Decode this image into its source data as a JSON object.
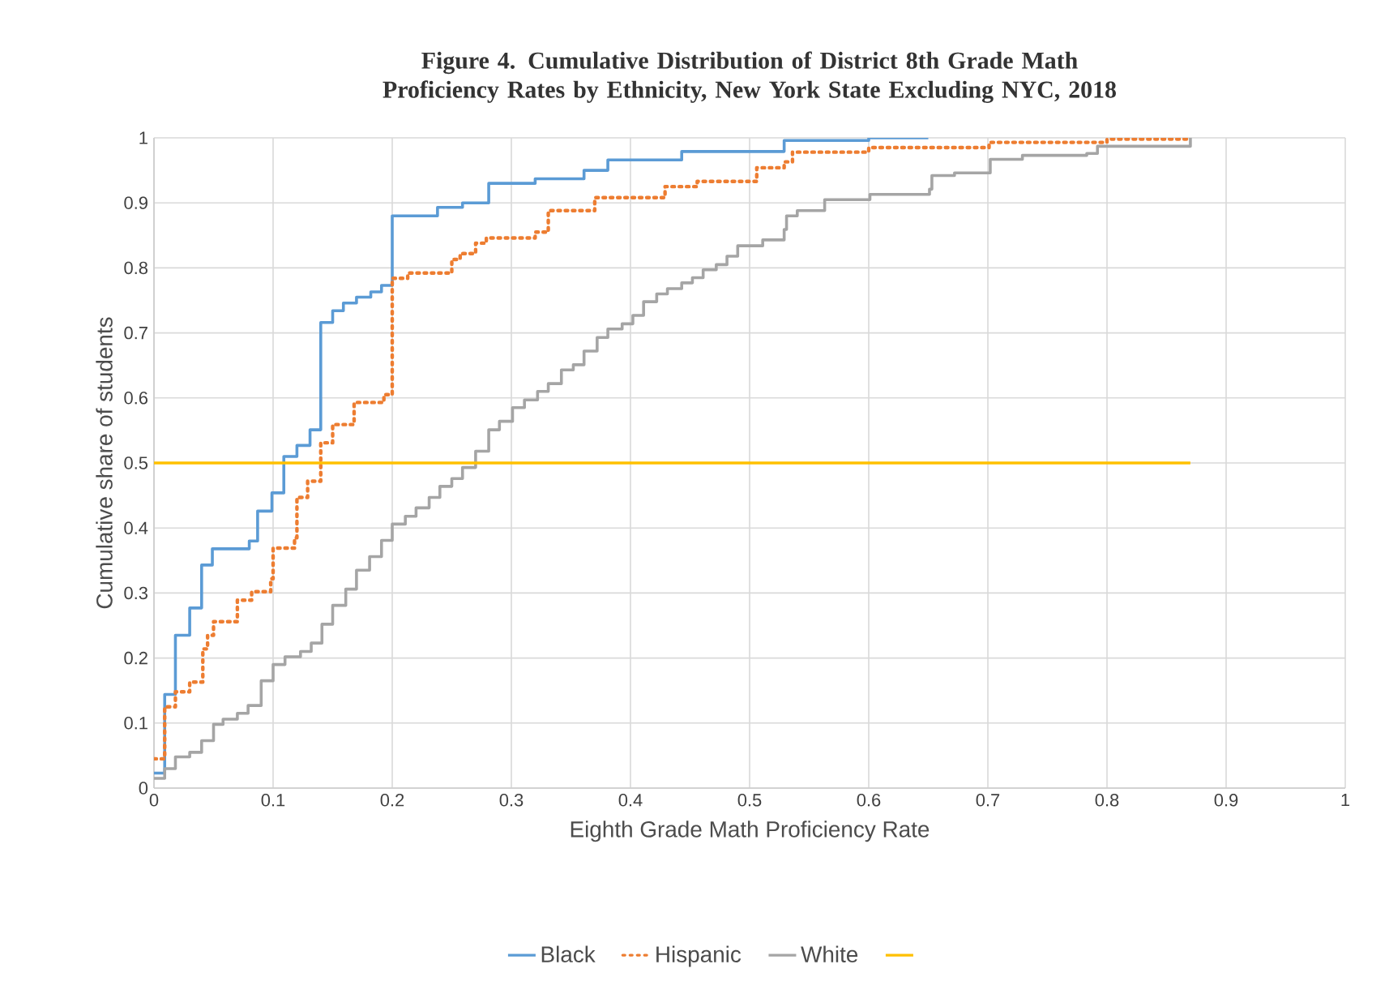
{
  "chart_data": {
    "type": "step",
    "title": "Figure 4. Cumulative Distribution of District 8th Grade Math Proficiency Rates by Ethnicity, New York State Excluding NYC, 2018",
    "xlabel": "Eighth Grade Math Proficiency Rate",
    "ylabel": "Cumulative share of students",
    "xlim": [
      0,
      1
    ],
    "ylim": [
      0,
      1
    ],
    "xticks": [
      0,
      0.1,
      0.2,
      0.3,
      0.4,
      0.5,
      0.6,
      0.7,
      0.8,
      0.9,
      1
    ],
    "yticks": [
      0,
      0.1,
      0.2,
      0.3,
      0.4,
      0.5,
      0.6,
      0.7,
      0.8,
      0.9,
      1
    ],
    "grid": true,
    "legend": "bottom",
    "series": [
      {
        "name": "Black",
        "color": "#5b9bd5",
        "line_style": "solid",
        "x": [
          0,
          0.009,
          0.018,
          0.03,
          0.04,
          0.049,
          0.08,
          0.087,
          0.099,
          0.109,
          0.12,
          0.131,
          0.14,
          0.15,
          0.159,
          0.17,
          0.182,
          0.191,
          0.2,
          0.238,
          0.259,
          0.281,
          0.32,
          0.361,
          0.381,
          0.443,
          0.529,
          0.6,
          0.65
        ],
        "values": [
          0.023,
          0.144,
          0.235,
          0.277,
          0.343,
          0.368,
          0.38,
          0.426,
          0.454,
          0.51,
          0.527,
          0.551,
          0.716,
          0.734,
          0.746,
          0.755,
          0.763,
          0.773,
          0.88,
          0.893,
          0.9,
          0.93,
          0.937,
          0.95,
          0.966,
          0.979,
          0.996,
          1.0,
          1.0
        ]
      },
      {
        "name": "Hispanic",
        "color": "#ed7d31",
        "line_style": "dotted",
        "x": [
          0,
          0.009,
          0.018,
          0.03,
          0.041,
          0.045,
          0.05,
          0.07,
          0.082,
          0.098,
          0.1,
          0.118,
          0.12,
          0.129,
          0.14,
          0.15,
          0.168,
          0.193,
          0.2,
          0.213,
          0.25,
          0.257,
          0.27,
          0.279,
          0.32,
          0.331,
          0.37,
          0.429,
          0.456,
          0.506,
          0.529,
          0.536,
          0.6,
          0.701,
          0.8,
          0.869
        ],
        "values": [
          0.045,
          0.125,
          0.148,
          0.163,
          0.214,
          0.235,
          0.256,
          0.289,
          0.302,
          0.322,
          0.369,
          0.385,
          0.447,
          0.472,
          0.531,
          0.559,
          0.593,
          0.605,
          0.784,
          0.792,
          0.813,
          0.822,
          0.838,
          0.846,
          0.855,
          0.888,
          0.908,
          0.925,
          0.933,
          0.954,
          0.963,
          0.978,
          0.985,
          0.993,
          0.998,
          1.0
        ]
      },
      {
        "name": "White",
        "color": "#a5a5a5",
        "line_style": "solid",
        "x": [
          0,
          0.009,
          0.018,
          0.03,
          0.04,
          0.05,
          0.058,
          0.07,
          0.079,
          0.09,
          0.1,
          0.11,
          0.123,
          0.132,
          0.141,
          0.15,
          0.161,
          0.17,
          0.181,
          0.191,
          0.2,
          0.211,
          0.22,
          0.231,
          0.24,
          0.25,
          0.259,
          0.27,
          0.281,
          0.29,
          0.301,
          0.311,
          0.322,
          0.331,
          0.342,
          0.352,
          0.361,
          0.372,
          0.381,
          0.393,
          0.402,
          0.411,
          0.422,
          0.431,
          0.443,
          0.452,
          0.461,
          0.472,
          0.481,
          0.49,
          0.511,
          0.529,
          0.531,
          0.54,
          0.563,
          0.601,
          0.651,
          0.653,
          0.672,
          0.702,
          0.729,
          0.783,
          0.792,
          0.87
        ],
        "values": [
          0.015,
          0.03,
          0.048,
          0.055,
          0.073,
          0.098,
          0.106,
          0.115,
          0.127,
          0.165,
          0.19,
          0.202,
          0.21,
          0.223,
          0.252,
          0.281,
          0.306,
          0.335,
          0.356,
          0.381,
          0.406,
          0.418,
          0.431,
          0.447,
          0.464,
          0.476,
          0.493,
          0.518,
          0.551,
          0.564,
          0.585,
          0.597,
          0.61,
          0.622,
          0.643,
          0.651,
          0.672,
          0.693,
          0.706,
          0.714,
          0.727,
          0.748,
          0.76,
          0.768,
          0.777,
          0.785,
          0.797,
          0.805,
          0.818,
          0.834,
          0.843,
          0.859,
          0.88,
          0.888,
          0.905,
          0.913,
          0.921,
          0.942,
          0.946,
          0.967,
          0.973,
          0.976,
          0.987,
          1.0
        ]
      },
      {
        "type": "line",
        "color": "#ffc000",
        "line_style": "solid",
        "x": [
          0,
          0.87
        ],
        "values": [
          0.5,
          0.5
        ]
      }
    ]
  }
}
